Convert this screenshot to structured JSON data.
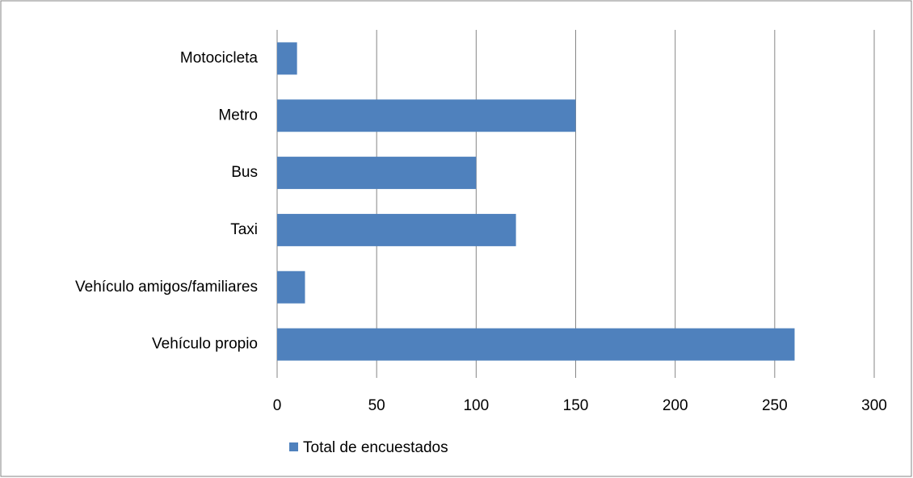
{
  "chart_data": {
    "type": "bar",
    "orientation": "horizontal",
    "categories": [
      "Motocicleta",
      "Metro",
      "Bus",
      "Taxi",
      "Vehículo amigos/familiares",
      "Vehículo propio"
    ],
    "series": [
      {
        "name": "Total de encuestados",
        "color": "#4f81bd",
        "values": [
          10,
          150,
          100,
          120,
          14,
          260
        ]
      }
    ],
    "xlim": [
      0,
      300
    ],
    "xticks": [
      0,
      50,
      100,
      150,
      200,
      250,
      300
    ],
    "grid": true,
    "legend": "bottom"
  }
}
